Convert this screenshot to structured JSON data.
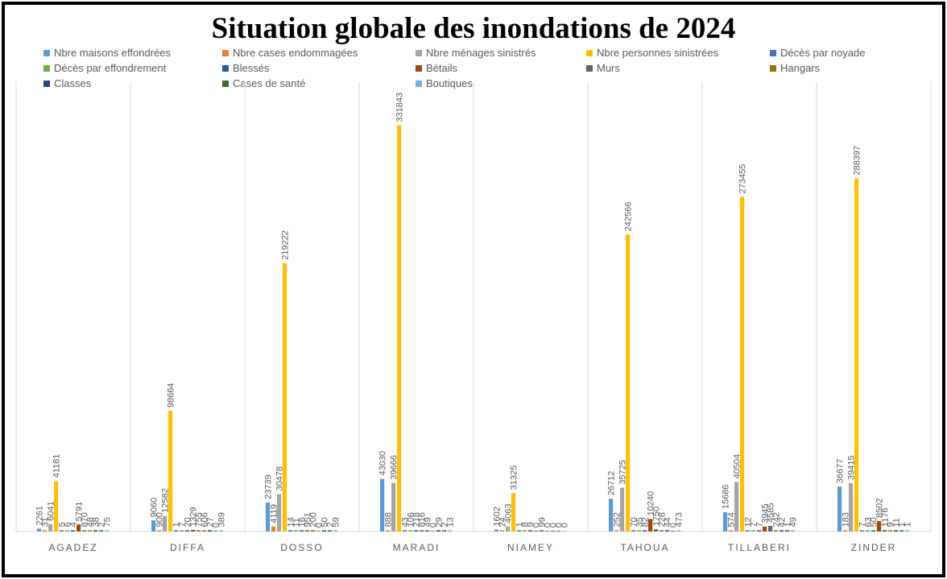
{
  "chart_data": {
    "type": "bar",
    "title": "Situation globale des inondations de 2024",
    "xlabel": "",
    "ylabel": "",
    "grid": false,
    "legend_position": "top",
    "ylim": [
      0,
      350000
    ],
    "categories": [
      "AGADEZ",
      "DIFFA",
      "DOSSO",
      "MARADI",
      "NIAMEY",
      "TAHOUA",
      "TILLABERI",
      "ZINDER"
    ],
    "series": [
      {
        "name": "Nbre maisons effondrées",
        "color": "#5B9BD5",
        "values": [
          2261,
          9060,
          23739,
          43030,
          1602,
          26712,
          15686,
          36677
        ]
      },
      {
        "name": "Nbre cases endommagées",
        "color": "#ED7D31",
        "values": [
          31,
          900,
          4119,
          888,
          24,
          252,
          574,
          183
        ]
      },
      {
        "name": "Nbre ménages sinistrés",
        "color": "#A5A5A5",
        "values": [
          6041,
          12582,
          30478,
          39666,
          4063,
          35725,
          40504,
          39415
        ]
      },
      {
        "name": "Nbre personnes sinistrées",
        "color": "#FFC000",
        "values": [
          41181,
          98664,
          219222,
          331843,
          31325,
          242566,
          273455,
          288397
        ]
      },
      {
        "name": "Décès par noyade",
        "color": "#4472C4",
        "values": [
          5,
          1,
          14,
          43,
          1,
          70,
          12,
          7
        ]
      },
      {
        "name": "Décès par effondrement",
        "color": "#70AD47",
        "values": [
          6,
          7,
          11,
          106,
          8,
          35,
          7,
          63
        ]
      },
      {
        "name": "Blessés",
        "color": "#255E91",
        "values": [
          4,
          20,
          16,
          218,
          9,
          82,
          7,
          50
        ]
      },
      {
        "name": "Bétails",
        "color": "#9E480E",
        "values": [
          5791,
          1329,
          951,
          816,
          0,
          10240,
          3945,
          8502
        ]
      },
      {
        "name": "Murs",
        "color": "#636363",
        "values": [
          870,
          755,
          200,
          49,
          99,
          1750,
          4585,
          1176
        ]
      },
      {
        "name": "Hangars",
        "color": "#997300",
        "values": [
          48,
          606,
          0,
          0,
          0,
          228,
          242,
          9
        ]
      },
      {
        "name": "Classes",
        "color": "#264478",
        "values": [
          38,
          27,
          50,
          29,
          0,
          44,
          42,
          11
        ]
      },
      {
        "name": "Cases de santé",
        "color": "#43682B",
        "values": [
          2,
          0,
          2,
          2,
          0,
          0,
          1,
          1
        ]
      },
      {
        "name": "Boutiques",
        "color": "#7CAFDD",
        "values": [
          75,
          389,
          59,
          13,
          0,
          473,
          49,
          1
        ]
      }
    ]
  }
}
